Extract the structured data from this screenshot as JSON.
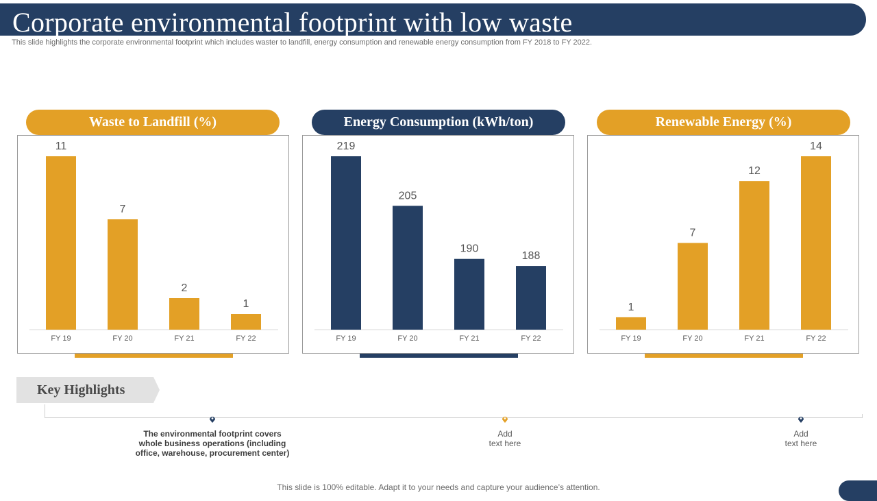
{
  "header": {
    "title": "Corporate environmental footprint with low waste",
    "subtitle": "This slide highlights the corporate environmental footprint which includes waster to landfill, energy consumption and renewable energy consumption from FY 2018 to FY 2022."
  },
  "colors": {
    "navy": "#253f63",
    "gold": "#e3a026",
    "grey_tag": "#e2e2e2"
  },
  "chart_data": [
    {
      "type": "bar",
      "title": "Waste to Landfill (%)",
      "categories": [
        "FY 19",
        "FY 20",
        "FY 21",
        "FY 22"
      ],
      "values": [
        11,
        7,
        2,
        1
      ],
      "value_labels": [
        "11",
        "7",
        "2",
        "1"
      ],
      "color": "#e3a026",
      "ylim": [
        0,
        11
      ]
    },
    {
      "type": "bar",
      "title": "Energy Consumption (kWh/ton)",
      "categories": [
        "FY 19",
        "FY 20",
        "FY 21",
        "FY 22"
      ],
      "values": [
        219,
        205,
        190,
        188
      ],
      "value_labels": [
        "219",
        "205",
        "190",
        "188"
      ],
      "color": "#253f63",
      "ylim": [
        170,
        219
      ]
    },
    {
      "type": "bar",
      "title": "Renewable Energy (%)",
      "categories": [
        "FY 19",
        "FY 20",
        "FY 21",
        "FY 22"
      ],
      "values": [
        1,
        7,
        12,
        14
      ],
      "value_labels": [
        "1",
        "7",
        "12",
        "14"
      ],
      "color": "#e3a026",
      "ylim": [
        0,
        14
      ]
    }
  ],
  "key_highlights": {
    "label": "Key Highlights",
    "items": [
      {
        "lines": [
          "The environmental footprint covers",
          "whole business operations (including",
          "office, warehouse, procurement center)"
        ],
        "marker_color": "#253f63"
      },
      {
        "lines": [
          "Add",
          "text here"
        ],
        "marker_color": "#e3a026"
      },
      {
        "lines": [
          "Add",
          "text here"
        ],
        "marker_color": "#253f63"
      }
    ]
  },
  "footer": {
    "text": "This slide is 100% editable. Adapt it to your needs and capture your audience’s attention."
  }
}
